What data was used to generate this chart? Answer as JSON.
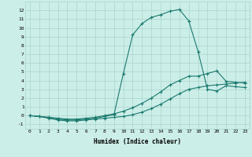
{
  "xlabel": "Humidex (Indice chaleur)",
  "background_color": "#cceee8",
  "grid_color": "#aad4ce",
  "line_color": "#1a7a6e",
  "xlim": [
    -0.5,
    23.5
  ],
  "ylim": [
    -1.5,
    13.0
  ],
  "xticks": [
    0,
    1,
    2,
    3,
    4,
    5,
    6,
    7,
    8,
    9,
    10,
    11,
    12,
    13,
    14,
    15,
    16,
    17,
    18,
    19,
    20,
    21,
    22,
    23
  ],
  "yticks": [
    -1,
    0,
    1,
    2,
    3,
    4,
    5,
    6,
    7,
    8,
    9,
    10,
    11,
    12
  ],
  "line1_x": [
    0,
    1,
    2,
    3,
    4,
    5,
    6,
    7,
    8,
    9,
    10,
    11,
    12,
    13,
    14,
    15,
    16,
    17,
    18,
    19,
    20,
    21,
    22,
    23
  ],
  "line1_y": [
    0.0,
    -0.1,
    -0.2,
    -0.4,
    -0.5,
    -0.5,
    -0.4,
    -0.3,
    -0.1,
    0.1,
    4.8,
    9.2,
    10.5,
    11.2,
    11.5,
    11.9,
    12.1,
    10.8,
    7.3,
    3.0,
    2.8,
    3.4,
    3.3,
    3.2
  ],
  "line2_x": [
    0,
    1,
    2,
    3,
    4,
    5,
    6,
    7,
    8,
    9,
    10,
    11,
    12,
    13,
    14,
    15,
    16,
    17,
    18,
    19,
    20,
    21,
    22,
    23
  ],
  "line2_y": [
    0.0,
    -0.1,
    -0.2,
    -0.3,
    -0.4,
    -0.4,
    -0.3,
    -0.2,
    0.0,
    0.2,
    0.5,
    0.9,
    1.4,
    2.0,
    2.7,
    3.5,
    4.0,
    4.5,
    4.5,
    4.8,
    5.1,
    3.9,
    3.8,
    3.7
  ],
  "line3_x": [
    0,
    1,
    2,
    3,
    4,
    5,
    6,
    7,
    8,
    9,
    10,
    11,
    12,
    13,
    14,
    15,
    16,
    17,
    18,
    19,
    20,
    21,
    22,
    23
  ],
  "line3_y": [
    0.0,
    -0.1,
    -0.3,
    -0.5,
    -0.6,
    -0.6,
    -0.5,
    -0.4,
    -0.3,
    -0.2,
    -0.1,
    0.1,
    0.4,
    0.8,
    1.3,
    1.9,
    2.5,
    3.0,
    3.2,
    3.4,
    3.5,
    3.6,
    3.7,
    3.8
  ]
}
